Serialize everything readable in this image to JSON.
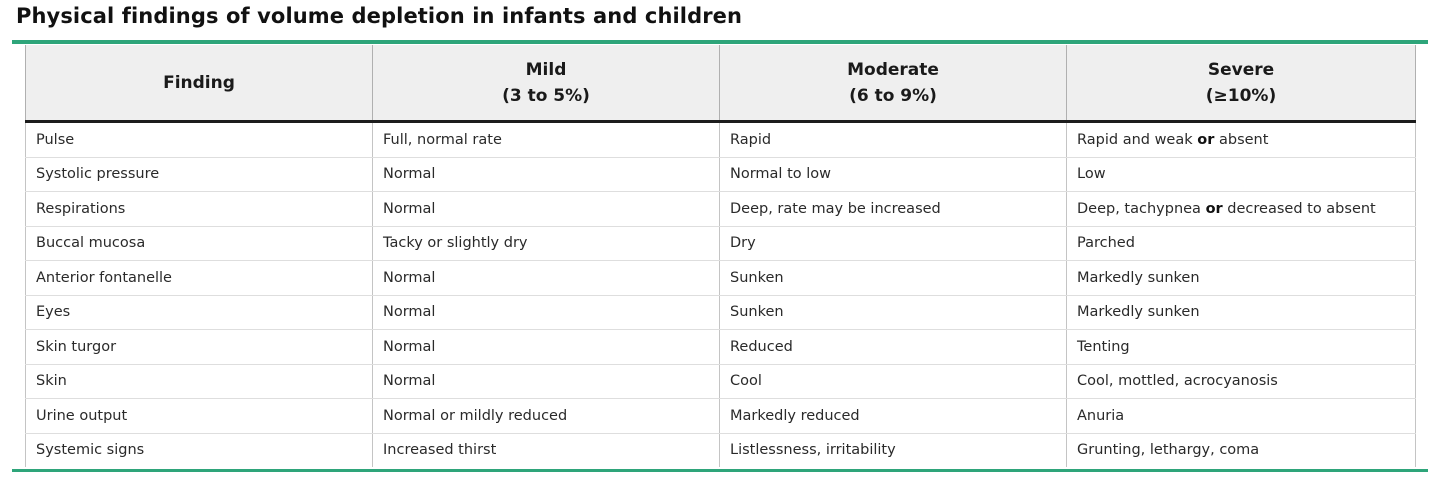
{
  "title": "Physical findings of volume depletion in infants and children",
  "colors": {
    "accent_rule": "#2ea57a",
    "header_bg": "#efefef"
  },
  "columns": [
    {
      "label": "Finding",
      "sub": ""
    },
    {
      "label": "Mild",
      "sub": "(3 to 5%)"
    },
    {
      "label": "Moderate",
      "sub": "(6 to 9%)"
    },
    {
      "label": "Severe",
      "sub": "(≥10%)"
    }
  ],
  "rows": [
    {
      "finding": "Pulse",
      "mild": "Full, normal rate",
      "moderate": "Rapid",
      "severe": {
        "a": "Rapid and weak",
        "conj": "or",
        "b": "absent"
      }
    },
    {
      "finding": "Systolic pressure",
      "mild": "Normal",
      "moderate": "Normal to low",
      "severe": "Low"
    },
    {
      "finding": "Respirations",
      "mild": "Normal",
      "moderate": "Deep, rate may be increased",
      "severe": {
        "a": "Deep, tachypnea",
        "conj": "or",
        "b": "decreased to absent"
      }
    },
    {
      "finding": "Buccal mucosa",
      "mild": "Tacky or slightly dry",
      "moderate": "Dry",
      "severe": "Parched"
    },
    {
      "finding": "Anterior fontanelle",
      "mild": "Normal",
      "moderate": "Sunken",
      "severe": "Markedly sunken"
    },
    {
      "finding": "Eyes",
      "mild": "Normal",
      "moderate": "Sunken",
      "severe": "Markedly sunken"
    },
    {
      "finding": "Skin turgor",
      "mild": "Normal",
      "moderate": "Reduced",
      "severe": "Tenting"
    },
    {
      "finding": "Skin",
      "mild": "Normal",
      "moderate": "Cool",
      "severe": "Cool, mottled, acrocyanosis"
    },
    {
      "finding": "Urine output",
      "mild": "Normal or mildly reduced",
      "moderate": "Markedly reduced",
      "severe": "Anuria"
    },
    {
      "finding": "Systemic signs",
      "mild": "Increased thirst",
      "moderate": "Listlessness, irritability",
      "severe": "Grunting, lethargy, coma"
    }
  ]
}
